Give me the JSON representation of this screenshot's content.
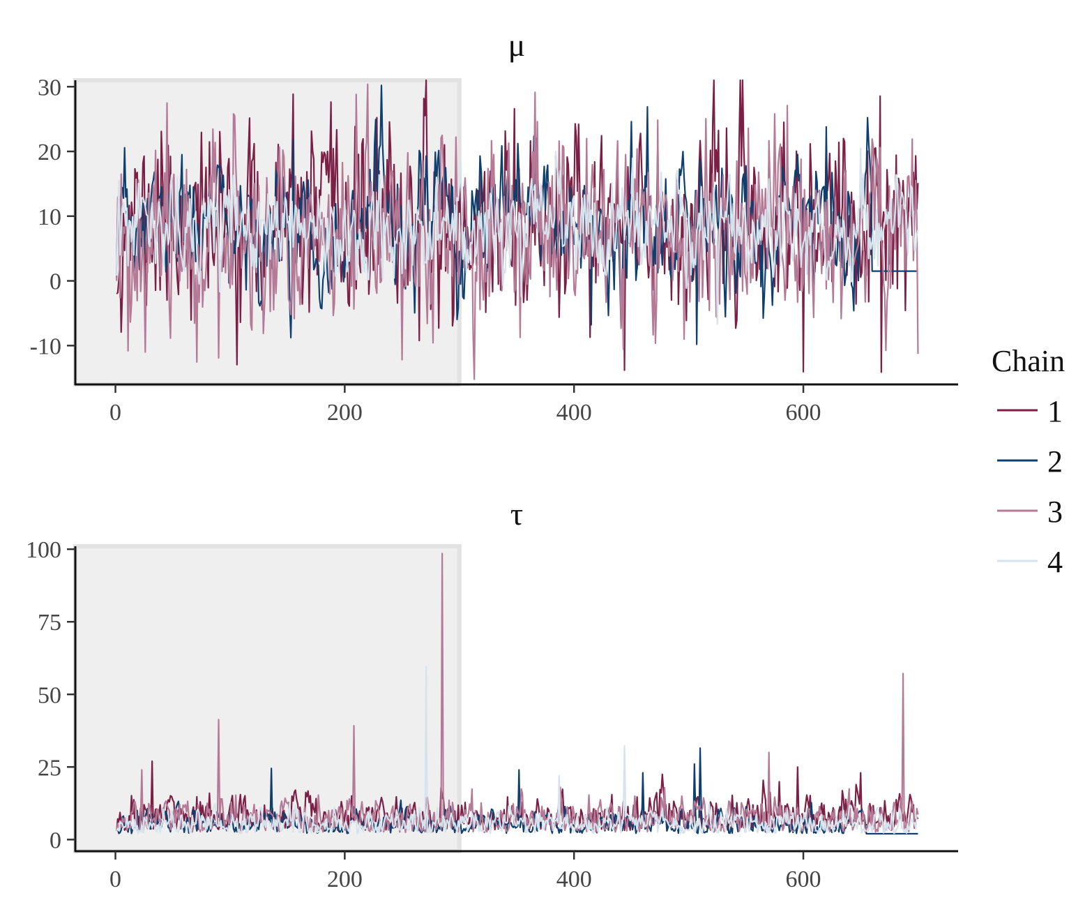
{
  "legend": {
    "title": "Chain",
    "items": [
      {
        "label": "1",
        "color": "#7B1F45"
      },
      {
        "label": "2",
        "color": "#0E3F6E"
      },
      {
        "label": "3",
        "color": "#B47A96"
      },
      {
        "label": "4",
        "color": "#D6E3EC"
      }
    ]
  },
  "warmup": {
    "start": 0,
    "end": 300,
    "shade_color": "#EFEFF0"
  },
  "chart_data": [
    {
      "type": "line",
      "title": "μ",
      "xlabel": "",
      "ylabel": "",
      "xlim": [
        -35,
        735
      ],
      "ylim": [
        -16,
        31
      ],
      "x_ticks": [
        0,
        200,
        400,
        600
      ],
      "y_ticks": [
        -10,
        0,
        10,
        20,
        30
      ],
      "x": {
        "start": 1,
        "end": 700,
        "step": 1
      },
      "series": [
        {
          "name": "1",
          "color": "#7B1F45",
          "seed": 11,
          "center": 8.5,
          "scale": 7.0,
          "start_value": -2,
          "ac": 0.25,
          "spikes": [
            [
              348,
              26.6
            ],
            [
              444,
              -13.8
            ],
            [
              668,
              -14.1
            ],
            [
              40,
              23.1
            ],
            [
              533,
              23.6
            ]
          ]
        },
        {
          "name": "2",
          "color": "#0E3F6E",
          "seed": 23,
          "center": 8.0,
          "scale": 5.5,
          "start_value": 0.5,
          "ac": 0.6,
          "spikes": [
            [
              155,
              21.8
            ],
            [
              507,
              -9.8
            ],
            [
              620,
              23.8
            ],
            [
              415,
              -6.8
            ]
          ],
          "tail_from": 660,
          "tail_value": 1.5
        },
        {
          "name": "3",
          "color": "#B47A96",
          "seed": 37,
          "center": 7.5,
          "scale": 7.0,
          "start_value": 0,
          "ac": 0.3,
          "spikes": [
            [
              210,
              28.8
            ],
            [
              90,
              -11.9
            ],
            [
              11,
              -10.8
            ],
            [
              586,
              27.1
            ],
            [
              575,
              25.8
            ],
            [
              368,
              24.6
            ]
          ]
        },
        {
          "name": "4",
          "color": "#D6E3EC",
          "seed": 53,
          "center": 8.0,
          "scale": 3.5,
          "start_value": 0.8,
          "ac": 0.4,
          "spikes": [
            [
              384,
              20.0
            ],
            [
              525,
              -6.7
            ],
            [
              650,
              20.5
            ]
          ]
        }
      ]
    },
    {
      "type": "line",
      "title": "τ",
      "xlabel": "",
      "ylabel": "",
      "xlim": [
        -35,
        735
      ],
      "ylim": [
        -4,
        101
      ],
      "x_ticks": [
        0,
        200,
        400,
        600
      ],
      "y_ticks": [
        0,
        25,
        50,
        75,
        100
      ],
      "x": {
        "start": 1,
        "end": 700,
        "step": 1
      },
      "series": [
        {
          "name": "1",
          "color": "#7B1F45",
          "seed": 71,
          "center": 9.0,
          "scale": 4.5,
          "start_value": 3,
          "ac": 0.5,
          "positive": true,
          "spikes": [
            [
              32,
              27
            ],
            [
              650,
              23
            ],
            [
              595,
              25
            ]
          ]
        },
        {
          "name": "2",
          "color": "#0E3F6E",
          "seed": 83,
          "center": 6.0,
          "scale": 3.5,
          "start_value": 3,
          "ac": 0.7,
          "positive": true,
          "spikes": [
            [
              136,
              24.5
            ],
            [
              510,
              31.5
            ],
            [
              505,
              26
            ],
            [
              352,
              24
            ],
            [
              460,
              23
            ]
          ],
          "tail_from": 655,
          "tail_value": 2.0
        },
        {
          "name": "3",
          "color": "#B47A96",
          "seed": 97,
          "center": 7.0,
          "scale": 4.5,
          "start_value": 3,
          "ac": 0.5,
          "positive": true,
          "spikes": [
            [
              285,
              98.5
            ],
            [
              687,
              57.2
            ],
            [
              90,
              41.3
            ],
            [
              208,
              39.2
            ],
            [
              570,
              30
            ],
            [
              23,
              24
            ]
          ]
        },
        {
          "name": "4",
          "color": "#D6E3EC",
          "seed": 113,
          "center": 6.0,
          "scale": 3.0,
          "start_value": 3,
          "ac": 0.5,
          "positive": true,
          "spikes": [
            [
              271,
              59.5
            ],
            [
              444,
              32.3
            ],
            [
              387,
              22
            ]
          ]
        }
      ]
    }
  ]
}
